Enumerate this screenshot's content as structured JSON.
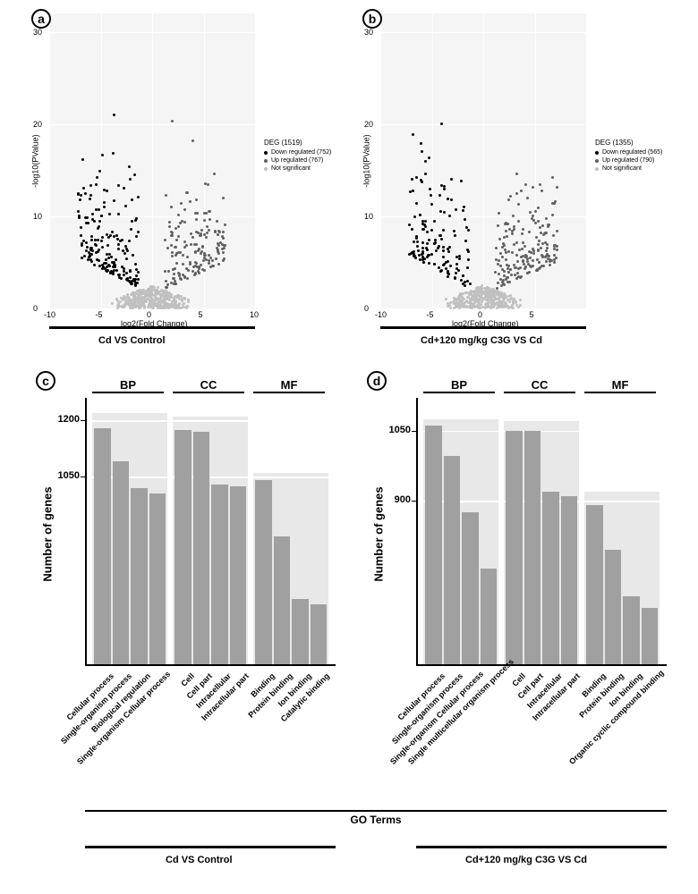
{
  "panels": {
    "a": {
      "label": "a",
      "caption": "Cd VS Control"
    },
    "b": {
      "label": "b",
      "caption": "Cd+120 mg/kg C3G VS Cd"
    },
    "c": {
      "label": "c",
      "caption": "Cd VS Control"
    },
    "d": {
      "label": "d",
      "caption": "Cd+120 mg/kg C3G VS Cd"
    }
  },
  "volcano_a": {
    "type": "scatter",
    "xlabel": "log2(Fold Change)",
    "ylabel": "-log10(PValue)",
    "xlim": [
      -10,
      10
    ],
    "ylim": [
      0,
      32
    ],
    "xticks": [
      -10,
      -5,
      0,
      5,
      10
    ],
    "yticks": [
      0,
      10,
      20,
      30
    ],
    "background_color": "#f5f5f5",
    "grid_color": "#ffffff",
    "legend_title": "DEG (1519)",
    "legend_items": [
      {
        "label": "Down regulated (752)",
        "color": "#000000"
      },
      {
        "label": "Up regulated (767)",
        "color": "#606060"
      },
      {
        "label": "Not significant",
        "color": "#c0c0c0"
      }
    ],
    "colors": {
      "down": "#000000",
      "up": "#606060",
      "ns": "#c0c0c0"
    }
  },
  "volcano_b": {
    "type": "scatter",
    "xlabel": "log2(Fold Change)",
    "ylabel": "-log10(PValue)",
    "xlim": [
      -10,
      10
    ],
    "ylim": [
      0,
      32
    ],
    "xticks": [
      -10,
      -5,
      0,
      5
    ],
    "yticks": [
      0,
      10,
      20,
      30
    ],
    "background_color": "#f5f5f5",
    "grid_color": "#ffffff",
    "legend_title": "DEG (1355)",
    "legend_items": [
      {
        "label": "Down regulated (565)",
        "color": "#000000"
      },
      {
        "label": "Up regulated (790)",
        "color": "#606060"
      },
      {
        "label": "Not significant",
        "color": "#c0c0c0"
      }
    ],
    "colors": {
      "down": "#000000",
      "up": "#606060",
      "ns": "#c0c0c0"
    }
  },
  "barchart_c": {
    "type": "bar",
    "ylabel": "Number of genes",
    "ylim": [
      550,
      1260
    ],
    "yticks": [
      1050,
      1200
    ],
    "bar_color": "#a0a0a0",
    "bg_color": "#e8e8e8",
    "grid_color": "#ffffff",
    "groups": [
      {
        "label": "BP",
        "bg_top": 1220,
        "bars": [
          {
            "label": "Cellular process",
            "value": 1180
          },
          {
            "label": "Single-organism  process",
            "value": 1090
          },
          {
            "label": "Biological regulation",
            "value": 1020
          },
          {
            "label": "Single-organism Cellular process",
            "value": 1005
          }
        ]
      },
      {
        "label": "CC",
        "bg_top": 1210,
        "bars": [
          {
            "label": "Cell",
            "value": 1175
          },
          {
            "label": "Cell part",
            "value": 1170
          },
          {
            "label": "Intracellular",
            "value": 1030
          },
          {
            "label": "Intracellular part",
            "value": 1025
          }
        ]
      },
      {
        "label": "MF",
        "bg_top": 1060,
        "bars": [
          {
            "label": "Binding",
            "value": 1040
          },
          {
            "label": "Protein binding",
            "value": 890
          },
          {
            "label": "Ion binding",
            "value": 725
          },
          {
            "label": "Catalytic binding",
            "value": 710
          }
        ]
      }
    ]
  },
  "barchart_d": {
    "type": "bar",
    "ylabel": "Number of genes",
    "ylim": [
      550,
      1120
    ],
    "yticks": [
      900,
      1050
    ],
    "bar_color": "#a0a0a0",
    "bg_color": "#e8e8e8",
    "grid_color": "#ffffff",
    "groups": [
      {
        "label": "BP",
        "bg_top": 1075,
        "bars": [
          {
            "label": "Cellular process",
            "value": 1060
          },
          {
            "label": "Single-organism  process",
            "value": 995
          },
          {
            "label": "Single-organism Cellular process",
            "value": 875
          },
          {
            "label": "Single multicellular organism process",
            "value": 755
          }
        ]
      },
      {
        "label": "CC",
        "bg_top": 1070,
        "bars": [
          {
            "label": "Cell",
            "value": 1050
          },
          {
            "label": "Cell part",
            "value": 1050
          },
          {
            "label": "Intracellular",
            "value": 920
          },
          {
            "label": "Intracellular part",
            "value": 910
          }
        ]
      },
      {
        "label": "MF",
        "bg_top": 920,
        "bars": [
          {
            "label": "Binding",
            "value": 890
          },
          {
            "label": "Protein binding",
            "value": 795
          },
          {
            "label": "Ion binding",
            "value": 695
          },
          {
            "label": "Organic cyclic compound binding",
            "value": 670
          }
        ]
      }
    ]
  },
  "go_terms_label": "GO Terms"
}
